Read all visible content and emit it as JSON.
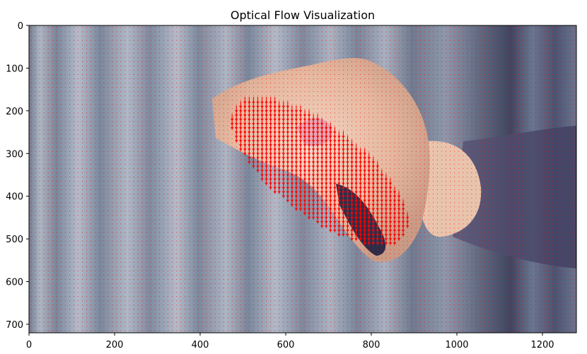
{
  "chart_data": {
    "type": "heatmap",
    "title": "Optical Flow Visualization",
    "xlabel": "",
    "ylabel": "",
    "xlim": [
      0,
      1280
    ],
    "ylim": [
      720,
      0
    ],
    "x_ticks": [
      "0",
      "200",
      "400",
      "600",
      "800",
      "1000",
      "1200"
    ],
    "y_ticks": [
      "0",
      "100",
      "200",
      "300",
      "400",
      "500",
      "600",
      "700"
    ],
    "grid": false,
    "background_image": "blurred video frame: hand in motion over grey striped background",
    "overlay": {
      "kind": "quiver",
      "arrow_color": "#ff0000",
      "grid_step": 10,
      "motion_region": {
        "description": "large downward flow vectors on the moving hand",
        "x_range": [
          420,
          940
        ],
        "y_range": [
          70,
          610
        ]
      }
    }
  }
}
